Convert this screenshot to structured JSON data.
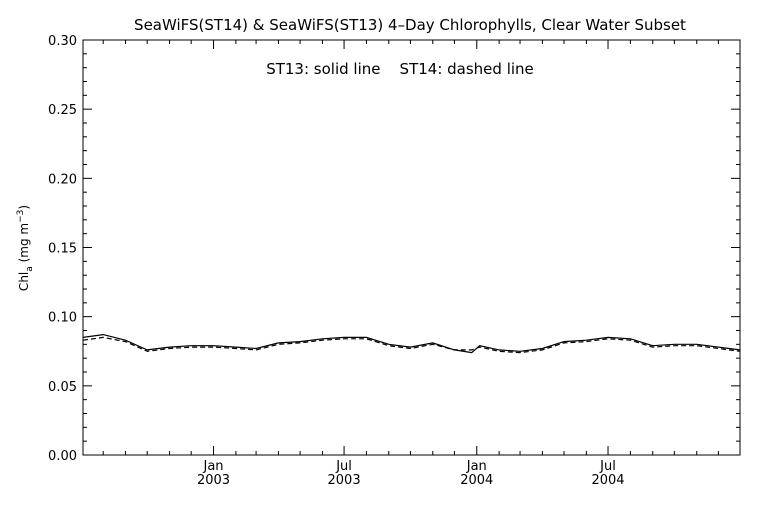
{
  "chart_data": {
    "type": "line",
    "title": "SeaWiFS(ST14) & SeaWiFS(ST13) 4–Day Chlorophylls, Clear Water Subset",
    "legend_text": "ST13: solid line    ST14: dashed line",
    "ylabel_main": "Chl",
    "ylabel_sub": "a",
    "ylabel_units": " (mg m",
    "ylabel_exp": "−3",
    "ylabel_close": ")",
    "ylim": [
      0.0,
      0.3
    ],
    "y_ticks": [
      "0.00",
      "0.05",
      "0.10",
      "0.15",
      "0.20",
      "0.25",
      "0.30"
    ],
    "y_tick_values": [
      0.0,
      0.05,
      0.1,
      0.15,
      0.2,
      0.25,
      0.3
    ],
    "xlim": [
      "2002-07-04",
      "2004-12-31"
    ],
    "x_ticks": [
      {
        "date": "2003-01-01",
        "month": "Jan",
        "year": "2003"
      },
      {
        "date": "2003-07-01",
        "month": "Jul",
        "year": "2003"
      },
      {
        "date": "2004-01-01",
        "month": "Jan",
        "year": "2004"
      },
      {
        "date": "2004-07-01",
        "month": "Jul",
        "year": "2004"
      }
    ],
    "series": [
      {
        "style": "solid",
        "x": [
          "2002-07-04",
          "2002-08-01",
          "2002-09-01",
          "2002-10-01",
          "2002-11-01",
          "2002-12-01",
          "2003-01-01",
          "2003-02-01",
          "2003-03-01",
          "2003-04-01",
          "2003-05-01",
          "2003-06-01",
          "2003-07-01",
          "2003-08-01",
          "2003-09-01",
          "2003-10-01",
          "2003-11-01",
          "2003-12-01",
          "2003-12-25",
          "2004-01-05",
          "2004-02-01",
          "2004-03-01",
          "2004-04-01",
          "2004-05-01",
          "2004-06-01",
          "2004-07-01",
          "2004-08-01",
          "2004-09-01",
          "2004-10-01",
          "2004-11-01",
          "2004-12-31"
        ],
        "y": [
          0.085,
          0.087,
          0.083,
          0.076,
          0.078,
          0.079,
          0.079,
          0.078,
          0.077,
          0.081,
          0.082,
          0.084,
          0.085,
          0.085,
          0.08,
          0.078,
          0.081,
          0.076,
          0.074,
          0.079,
          0.076,
          0.075,
          0.077,
          0.082,
          0.083,
          0.085,
          0.084,
          0.079,
          0.08,
          0.08,
          0.076
        ]
      },
      {
        "style": "dashed",
        "x": [
          "2002-07-04",
          "2002-08-01",
          "2002-09-01",
          "2002-10-01",
          "2002-11-01",
          "2002-12-01",
          "2003-01-01",
          "2003-02-01",
          "2003-03-01",
          "2003-04-01",
          "2003-05-01",
          "2003-06-01",
          "2003-07-01",
          "2003-08-01",
          "2003-09-01",
          "2003-10-01",
          "2003-11-01",
          "2003-12-01",
          "2003-12-25",
          "2004-01-05",
          "2004-02-01",
          "2004-03-01",
          "2004-04-01",
          "2004-05-01",
          "2004-06-01",
          "2004-07-01",
          "2004-08-01",
          "2004-09-01",
          "2004-10-01",
          "2004-11-01",
          "2004-12-31"
        ],
        "y": [
          0.083,
          0.085,
          0.082,
          0.075,
          0.077,
          0.078,
          0.078,
          0.077,
          0.076,
          0.08,
          0.081,
          0.083,
          0.084,
          0.084,
          0.079,
          0.077,
          0.08,
          0.076,
          0.076,
          0.078,
          0.075,
          0.074,
          0.076,
          0.081,
          0.082,
          0.084,
          0.083,
          0.078,
          0.079,
          0.079,
          0.075
        ]
      }
    ]
  }
}
